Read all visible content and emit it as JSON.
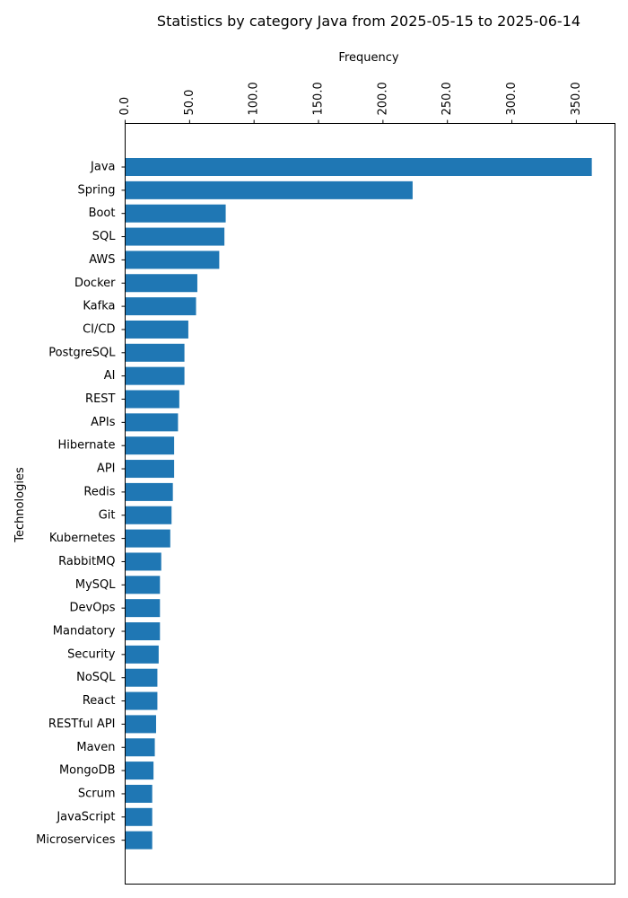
{
  "chart_data": {
    "type": "bar",
    "orientation": "horizontal",
    "title": "Statistics by category Java from 2025-05-15 to 2025-06-14",
    "xlabel": "Frequency",
    "ylabel": "Technologies",
    "x_axis_position": "top",
    "xlim": [
      0,
      380
    ],
    "x_ticks": [
      0,
      50,
      100,
      150,
      200,
      250,
      300,
      350
    ],
    "x_tick_labels": [
      "0.0",
      "50.0",
      "100.0",
      "150.0",
      "200.0",
      "250.0",
      "300.0",
      "350.0"
    ],
    "grid": false,
    "bar_color": "#1f77b4",
    "categories": [
      "Java",
      "Spring",
      "Boot",
      "SQL",
      "AWS",
      "Docker",
      "Kafka",
      "CI/CD",
      "PostgreSQL",
      "AI",
      "REST",
      "APIs",
      "Hibernate",
      "API",
      "Redis",
      "Git",
      "Kubernetes",
      "RabbitMQ",
      "MySQL",
      "DevOps",
      "Mandatory",
      "Security",
      "NoSQL",
      "React",
      "RESTful API",
      "Maven",
      "MongoDB",
      "Scrum",
      "JavaScript",
      "Microservices"
    ],
    "values": [
      362,
      223,
      78,
      77,
      73,
      56,
      55,
      49,
      46,
      46,
      42,
      41,
      38,
      38,
      37,
      36,
      35,
      28,
      27,
      27,
      27,
      26,
      25,
      25,
      24,
      23,
      22,
      21,
      21,
      21
    ]
  }
}
